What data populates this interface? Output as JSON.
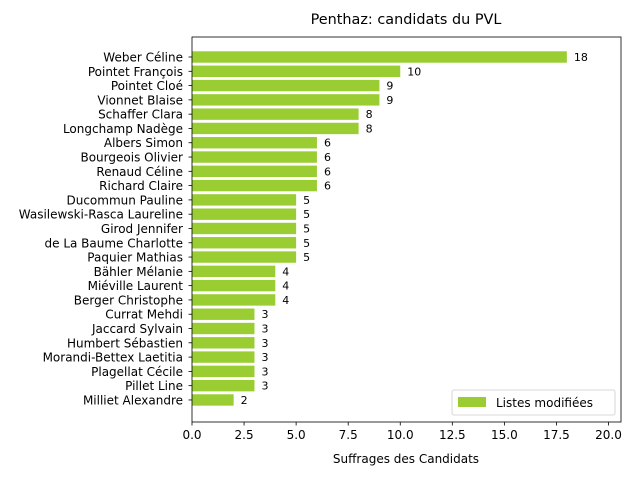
{
  "chart_data": {
    "type": "bar",
    "orientation": "horizontal",
    "title": "Penthaz: candidats du PVL",
    "xlabel": "Suffrages des Candidats",
    "ylabel": "",
    "xlim": [
      0,
      20.6
    ],
    "xticks": [
      0,
      2.5,
      5,
      7.5,
      10,
      12.5,
      15,
      17.5,
      20
    ],
    "xtick_labels": [
      "0.0",
      "2.5",
      "5.0",
      "7.5",
      "10.0",
      "12.5",
      "15.0",
      "17.5",
      "20.0"
    ],
    "grid": false,
    "legend_position": "lower-right",
    "series": [
      {
        "name": "Listes modifiées",
        "color": "#9acd32"
      }
    ],
    "categories": [
      "Weber Céline",
      "Pointet François",
      "Pointet Cloé",
      "Vionnet Blaise",
      "Schaffer Clara",
      "Longchamp Nadège",
      "Albers Simon",
      "Bourgeois Olivier",
      "Renaud Céline",
      "Richard Claire",
      "Ducommun Pauline",
      "Wasilewski-Rasca Laureline",
      "Girod Jennifer",
      "de La Baume Charlotte",
      "Paquier Mathias",
      "Bähler Mélanie",
      "Miéville Laurent",
      "Berger Christophe",
      "Currat Mehdi",
      "Jaccard Sylvain",
      "Humbert Sébastien",
      "Morandi-Bettex Laetitia",
      "Plagellat Cécile",
      "Pillet Line",
      "Milliet Alexandre"
    ],
    "values": [
      18,
      10,
      9,
      9,
      8,
      8,
      6,
      6,
      6,
      6,
      5,
      5,
      5,
      5,
      5,
      4,
      4,
      4,
      3,
      3,
      3,
      3,
      3,
      3,
      2
    ]
  }
}
